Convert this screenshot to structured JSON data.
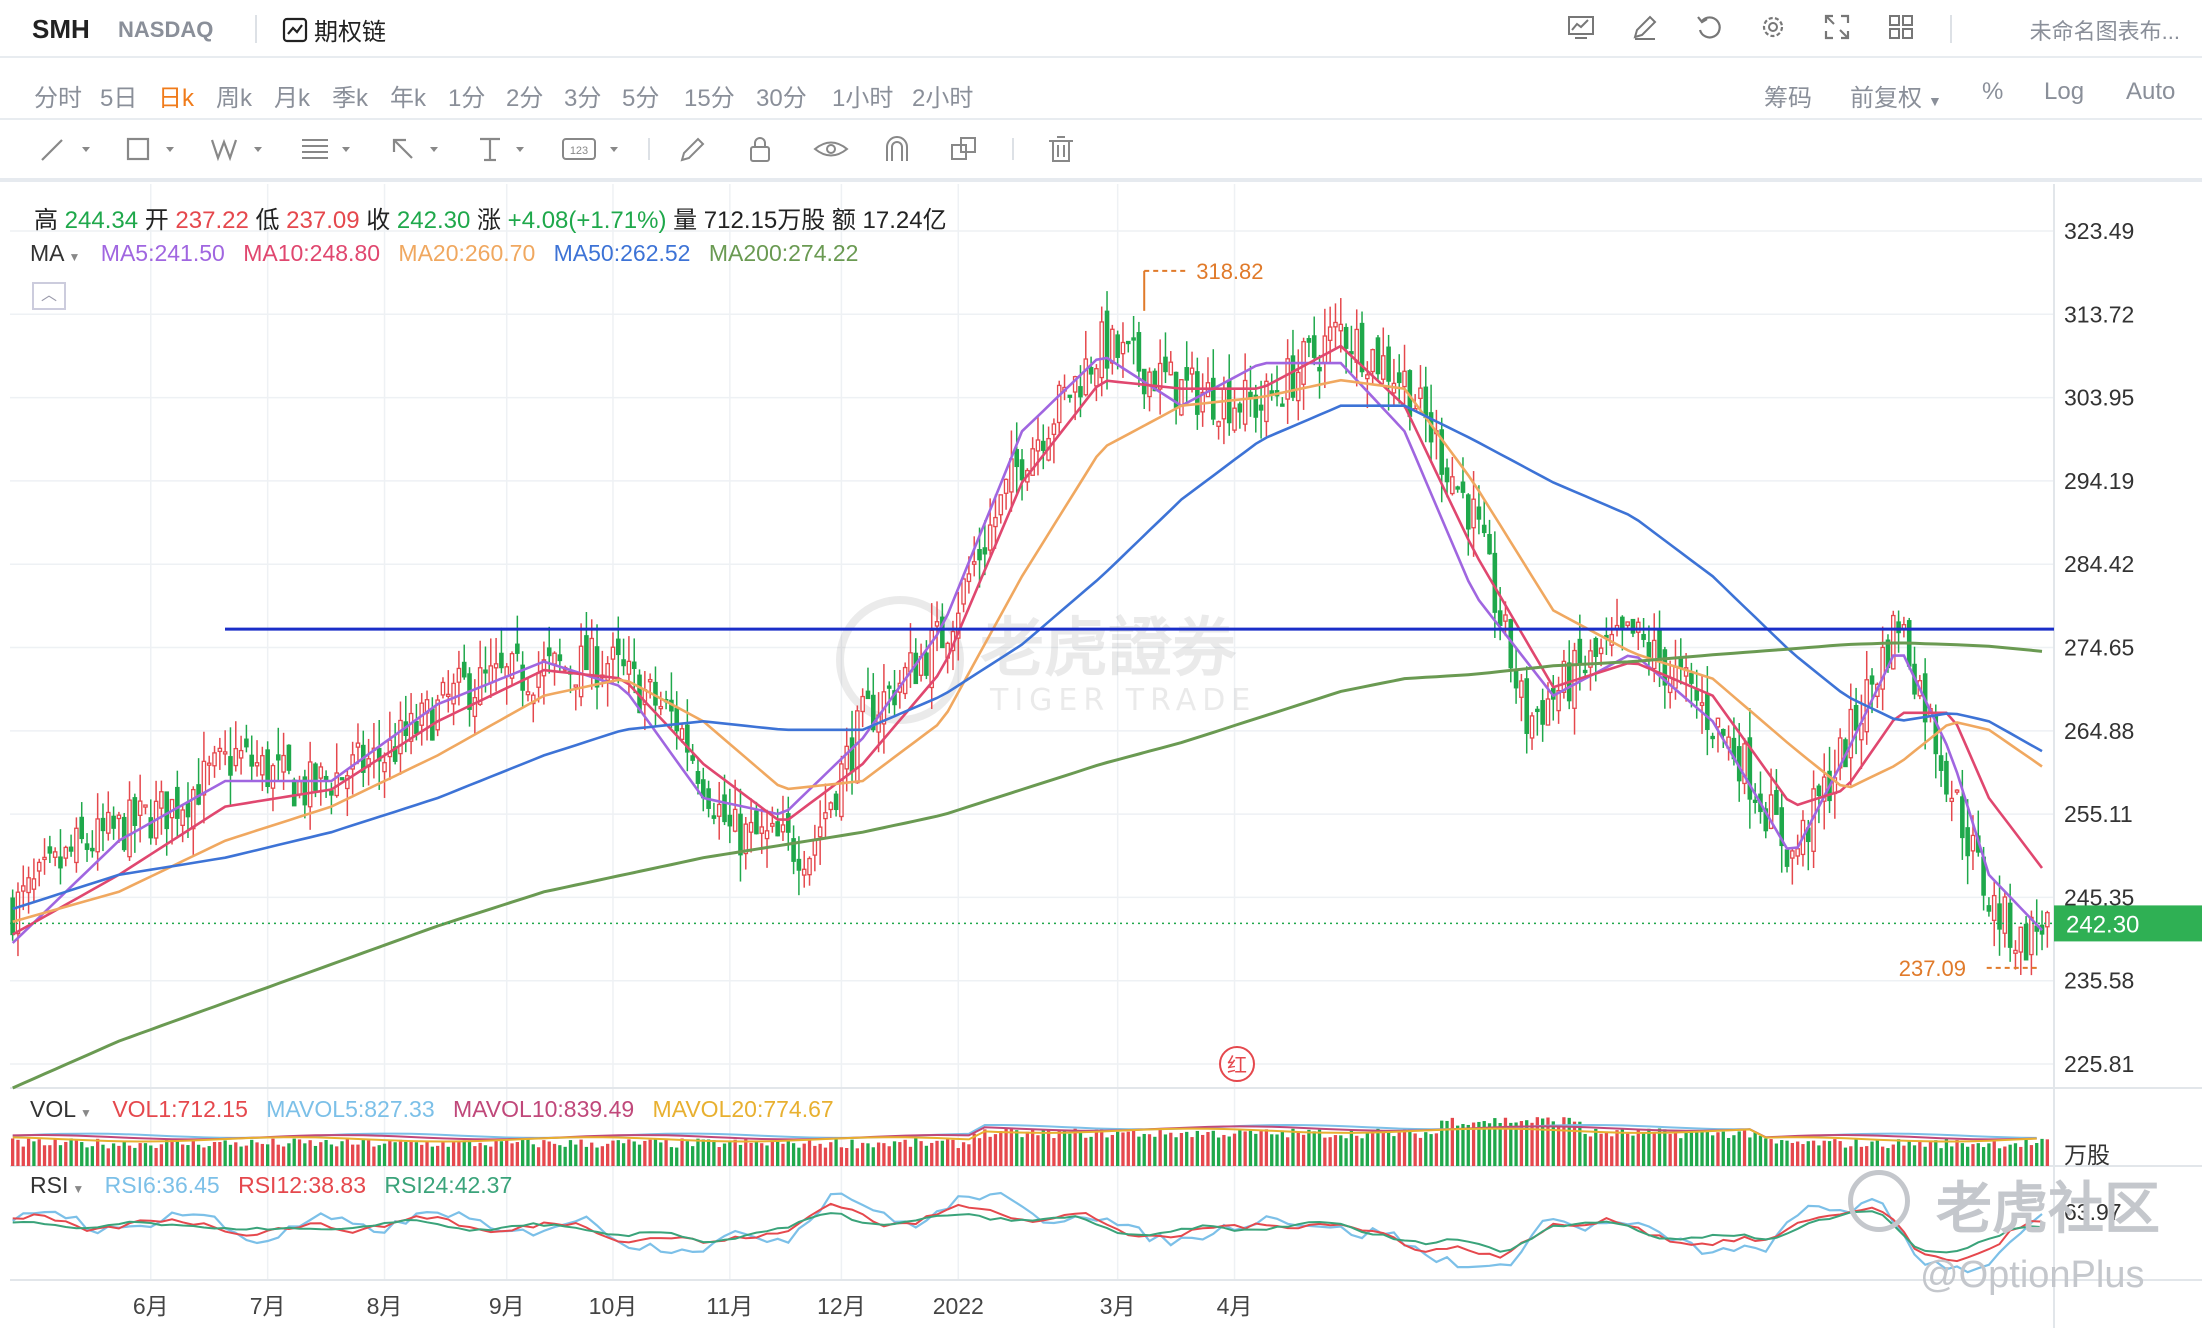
{
  "header": {
    "symbol": "SMH",
    "exchange": "NASDAQ",
    "option_chain_label": "期权链",
    "chart_name": "未命名图表布..."
  },
  "periods": [
    "分时",
    "5日",
    "日k",
    "周k",
    "月k",
    "季k",
    "年k",
    "1分",
    "2分",
    "3分",
    "5分",
    "15分",
    "30分",
    "1小时",
    "2小时"
  ],
  "active_period": "日k",
  "right_options": {
    "chips": "筹码",
    "adjust": "前复权",
    "percent": "%",
    "log": "Log",
    "auto": "Auto"
  },
  "quote": {
    "high_label": "高",
    "high": "244.34",
    "open_label": "开",
    "open": "237.22",
    "low_label": "低",
    "low": "237.09",
    "close_label": "收",
    "close": "242.30",
    "change_label": "涨",
    "change": "+4.08(+1.71%)",
    "volume_label": "量",
    "volume": "712.15万股",
    "amount_label": "额",
    "amount": "17.24亿"
  },
  "ma": {
    "label": "MA",
    "ma5": "MA5:241.50",
    "ma10": "MA10:248.80",
    "ma20": "MA20:260.70",
    "ma50": "MA50:262.52",
    "ma200": "MA200:274.22",
    "colors": {
      "ma5": "#a066e0",
      "ma10": "#e0476f",
      "ma20": "#f0a860",
      "ma50": "#3d73d6",
      "ma200": "#6a9a52"
    }
  },
  "vol": {
    "label": "VOL",
    "vol1": "VOL1:712.15",
    "mavol5": "MAVOL5:827.33",
    "mavol10": "MAVOL10:839.49",
    "mavol20": "MAVOL20:774.67",
    "unit": "万股"
  },
  "rsi": {
    "label": "RSI",
    "rsi6": "RSI6:36.45",
    "rsi12": "RSI12:38.83",
    "rsi24": "RSI24:42.37",
    "axis_label": "63.97"
  },
  "price_axis": [
    "323.49",
    "313.72",
    "303.95",
    "294.19",
    "284.42",
    "274.65",
    "264.88",
    "255.11",
    "245.35",
    "235.58",
    "225.81"
  ],
  "last_price_tag": "242.30",
  "annotations": {
    "high_marker": "318.82",
    "low_marker": "237.09",
    "red_marker": "红"
  },
  "x_axis": [
    "6月",
    "7月",
    "8月",
    "9月",
    "10月",
    "11月",
    "12月",
    "2022",
    "3月",
    "4月"
  ],
  "watermark": {
    "center": "老虎證券",
    "center_sub": "TIGER TRADE",
    "community": "老虎社区",
    "user": "@OptionPlus"
  },
  "colors": {
    "up": "#e5484d",
    "down": "#1fa84b",
    "accent": "#f07b1a",
    "hline": "#1a2ec8",
    "ma200": "#6a9a52"
  },
  "chart_data": {
    "type": "candlestick",
    "symbol": "SMH",
    "x_labels": [
      "6月",
      "7月",
      "8月",
      "9月",
      "10月",
      "11月",
      "12月",
      "2022",
      "3月",
      "4月"
    ],
    "y_ticks": [
      323.49,
      313.72,
      303.95,
      294.19,
      284.42,
      274.65,
      264.88,
      255.11,
      245.35,
      235.58,
      225.81
    ],
    "ylim": [
      223.0,
      329.0
    ],
    "horizontal_line": 276.8,
    "last_close": 242.3,
    "period_high": 318.82,
    "period_low": 237.09,
    "close_path": [
      [
        0,
        244.0
      ],
      [
        12,
        251.0
      ],
      [
        30,
        256.0
      ],
      [
        42,
        262.0
      ],
      [
        55,
        258.0
      ],
      [
        70,
        262.0
      ],
      [
        85,
        270.0
      ],
      [
        100,
        272.0
      ],
      [
        112,
        273.0
      ],
      [
        125,
        266.0
      ],
      [
        135,
        253.0
      ],
      [
        150,
        251.0
      ],
      [
        160,
        266.0
      ],
      [
        175,
        276.0
      ],
      [
        190,
        297.0
      ],
      [
        205,
        310.0
      ],
      [
        220,
        305.0
      ],
      [
        235,
        303.0
      ],
      [
        250,
        312.0
      ],
      [
        262,
        306.0
      ],
      [
        275,
        290.0
      ],
      [
        285,
        266.0
      ],
      [
        295,
        272.0
      ],
      [
        305,
        276.0
      ],
      [
        315,
        270.0
      ],
      [
        325,
        262.0
      ],
      [
        335,
        250.0
      ],
      [
        345,
        263.0
      ],
      [
        355,
        278.0
      ],
      [
        365,
        258.0
      ],
      [
        372,
        245.0
      ],
      [
        378,
        240.0
      ],
      [
        382,
        242.3
      ]
    ],
    "series": [
      {
        "name": "MA5",
        "color": "#a066e0",
        "points": [
          [
            0,
            240.0
          ],
          [
            20,
            252.0
          ],
          [
            40,
            259.0
          ],
          [
            60,
            259.0
          ],
          [
            80,
            268.0
          ],
          [
            100,
            273.0
          ],
          [
            115,
            270.0
          ],
          [
            130,
            257.0
          ],
          [
            145,
            255.0
          ],
          [
            160,
            264.0
          ],
          [
            175,
            277.0
          ],
          [
            190,
            300.0
          ],
          [
            205,
            309.0
          ],
          [
            220,
            303.0
          ],
          [
            235,
            308.0
          ],
          [
            250,
            308.0
          ],
          [
            262,
            300.0
          ],
          [
            275,
            281.0
          ],
          [
            290,
            269.0
          ],
          [
            305,
            274.0
          ],
          [
            320,
            266.0
          ],
          [
            335,
            250.0
          ],
          [
            345,
            262.0
          ],
          [
            355,
            275.0
          ],
          [
            365,
            262.0
          ],
          [
            372,
            248.0
          ],
          [
            382,
            241.5
          ]
        ]
      },
      {
        "name": "MA10",
        "color": "#e0476f",
        "points": [
          [
            0,
            241.0
          ],
          [
            20,
            248.0
          ],
          [
            40,
            256.0
          ],
          [
            60,
            258.0
          ],
          [
            80,
            266.0
          ],
          [
            100,
            272.0
          ],
          [
            115,
            271.0
          ],
          [
            130,
            261.0
          ],
          [
            145,
            254.0
          ],
          [
            160,
            261.0
          ],
          [
            175,
            272.0
          ],
          [
            190,
            294.0
          ],
          [
            205,
            306.0
          ],
          [
            220,
            305.0
          ],
          [
            235,
            305.0
          ],
          [
            250,
            310.0
          ],
          [
            262,
            303.0
          ],
          [
            275,
            286.0
          ],
          [
            290,
            270.0
          ],
          [
            305,
            273.0
          ],
          [
            320,
            269.0
          ],
          [
            335,
            256.0
          ],
          [
            345,
            258.0
          ],
          [
            355,
            267.0
          ],
          [
            365,
            267.0
          ],
          [
            372,
            257.0
          ],
          [
            382,
            248.8
          ]
        ]
      },
      {
        "name": "MA20",
        "color": "#f0a860",
        "points": [
          [
            0,
            242.5
          ],
          [
            20,
            246.0
          ],
          [
            40,
            252.0
          ],
          [
            60,
            256.0
          ],
          [
            80,
            262.0
          ],
          [
            100,
            269.0
          ],
          [
            115,
            271.0
          ],
          [
            130,
            266.0
          ],
          [
            145,
            258.0
          ],
          [
            160,
            259.0
          ],
          [
            175,
            266.0
          ],
          [
            190,
            283.0
          ],
          [
            205,
            298.0
          ],
          [
            220,
            303.0
          ],
          [
            235,
            304.0
          ],
          [
            250,
            306.0
          ],
          [
            262,
            305.0
          ],
          [
            275,
            294.0
          ],
          [
            290,
            279.0
          ],
          [
            305,
            274.0
          ],
          [
            320,
            271.0
          ],
          [
            335,
            263.0
          ],
          [
            345,
            258.0
          ],
          [
            355,
            261.0
          ],
          [
            365,
            266.0
          ],
          [
            372,
            265.0
          ],
          [
            382,
            260.7
          ]
        ]
      },
      {
        "name": "MA50",
        "color": "#3d73d6",
        "points": [
          [
            0,
            244.0
          ],
          [
            20,
            248.0
          ],
          [
            40,
            250.0
          ],
          [
            60,
            253.0
          ],
          [
            80,
            257.0
          ],
          [
            100,
            262.0
          ],
          [
            115,
            265.0
          ],
          [
            130,
            266.0
          ],
          [
            145,
            265.0
          ],
          [
            160,
            265.0
          ],
          [
            175,
            269.0
          ],
          [
            190,
            275.0
          ],
          [
            205,
            283.0
          ],
          [
            220,
            292.0
          ],
          [
            235,
            299.0
          ],
          [
            250,
            303.0
          ],
          [
            262,
            303.0
          ],
          [
            275,
            299.0
          ],
          [
            290,
            294.0
          ],
          [
            305,
            290.0
          ],
          [
            320,
            283.0
          ],
          [
            335,
            274.0
          ],
          [
            345,
            269.0
          ],
          [
            355,
            266.0
          ],
          [
            365,
            267.0
          ],
          [
            372,
            266.0
          ],
          [
            382,
            262.5
          ]
        ]
      },
      {
        "name": "MA200",
        "color": "#6a9a52",
        "points": [
          [
            0,
            223.0
          ],
          [
            20,
            228.5
          ],
          [
            40,
            233.0
          ],
          [
            60,
            237.5
          ],
          [
            80,
            242.0
          ],
          [
            100,
            246.0
          ],
          [
            115,
            248.0
          ],
          [
            130,
            250.0
          ],
          [
            145,
            251.5
          ],
          [
            160,
            253.0
          ],
          [
            175,
            255.0
          ],
          [
            190,
            258.0
          ],
          [
            205,
            261.0
          ],
          [
            220,
            263.5
          ],
          [
            235,
            266.5
          ],
          [
            250,
            269.5
          ],
          [
            262,
            271.0
          ],
          [
            275,
            271.5
          ],
          [
            290,
            272.5
          ],
          [
            305,
            273.0
          ],
          [
            320,
            273.8
          ],
          [
            335,
            274.5
          ],
          [
            345,
            275.0
          ],
          [
            355,
            275.2
          ],
          [
            365,
            275.0
          ],
          [
            372,
            274.8
          ],
          [
            382,
            274.2
          ]
        ]
      }
    ]
  }
}
